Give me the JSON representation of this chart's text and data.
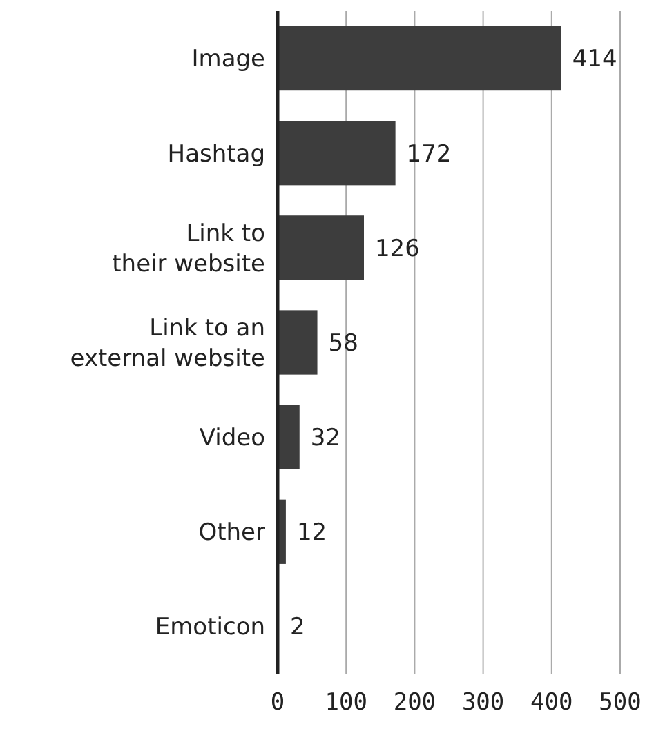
{
  "chart_data": {
    "type": "bar",
    "orientation": "horizontal",
    "categories": [
      "Image",
      "Hashtag",
      "Link to\ntheir website",
      "Link to an\nexternal website",
      "Video",
      "Other",
      "Emoticon"
    ],
    "values": [
      414,
      172,
      126,
      58,
      32,
      12,
      2
    ],
    "color": "#3d3d3d",
    "xlim": [
      0,
      500
    ],
    "xticks": [
      0,
      100,
      200,
      300,
      400,
      500
    ],
    "grid": "x",
    "data_labels": true
  }
}
